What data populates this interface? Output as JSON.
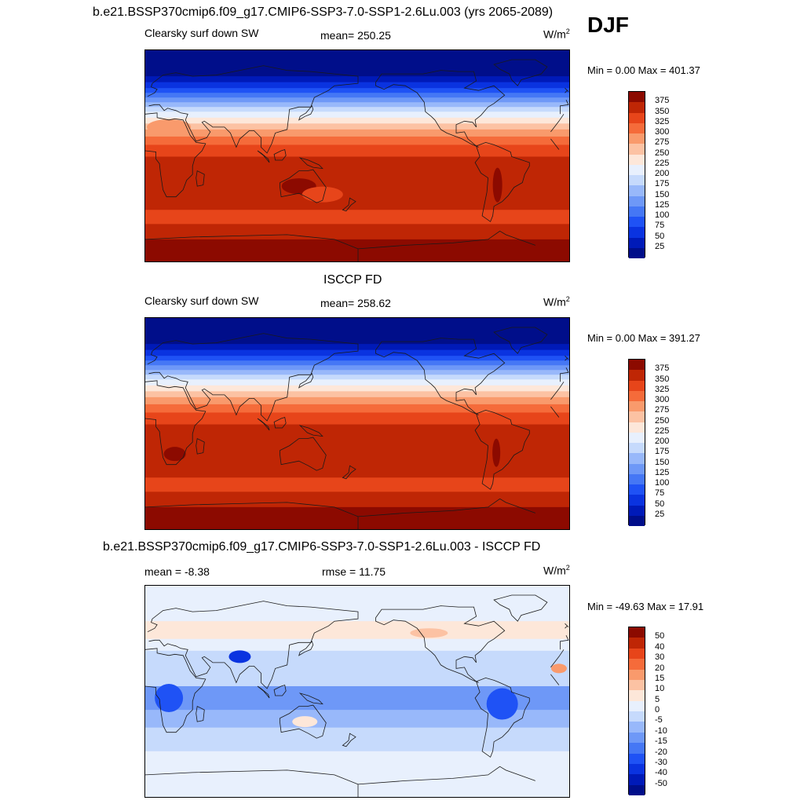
{
  "header": {
    "title": "b.e21.BSSP370cmip6.f09_g17.CMIP6-SSP3-7.0-SSP1-2.6Lu.003 (yrs 2065-2089)",
    "season": "DJF"
  },
  "panels": [
    {
      "id": "model",
      "title": "",
      "field_label": "Clearsky surf down SW",
      "stat_text": "mean= 250.25",
      "units_base": "W/m",
      "units_exp": "2",
      "minmax_text": "Min =   0.00 Max = 401.37",
      "colorbar_labels": [
        "375",
        "350",
        "325",
        "300",
        "275",
        "250",
        "225",
        "200",
        "175",
        "150",
        "125",
        "100",
        "75",
        "50",
        "25"
      ]
    },
    {
      "id": "obs",
      "title": "ISCCP FD",
      "field_label": "Clearsky surf down SW",
      "stat_text": "mean= 258.62",
      "units_base": "W/m",
      "units_exp": "2",
      "minmax_text": "Min =   0.00 Max = 391.27",
      "colorbar_labels": [
        "375",
        "350",
        "325",
        "300",
        "275",
        "250",
        "225",
        "200",
        "175",
        "150",
        "125",
        "100",
        "75",
        "50",
        "25"
      ]
    },
    {
      "id": "diff",
      "title": "b.e21.BSSP370cmip6.f09_g17.CMIP6-SSP3-7.0-SSP1-2.6Lu.003 - ISCCP FD",
      "field_label": "mean =  -8.38",
      "stat_text": "rmse =  11.75",
      "units_base": "W/m",
      "units_exp": "2",
      "minmax_text": "Min = -49.63 Max =  17.91",
      "colorbar_labels": [
        "50",
        "40",
        "30",
        "20",
        "15",
        "10",
        "5",
        "0",
        "-5",
        "-10",
        "-15",
        "-20",
        "-30",
        "-40",
        "-50"
      ]
    }
  ],
  "colors": {
    "abs_scale": [
      "#000e8a",
      "#001ab8",
      "#0a33e0",
      "#1f52f5",
      "#4577f5",
      "#6e98f7",
      "#98b8fa",
      "#c6dafc",
      "#e8f0fd",
      "#fde7d9",
      "#fcc2a3",
      "#f99a6c",
      "#f56b3a",
      "#e7451a",
      "#bf2605",
      "#8c0a00"
    ],
    "diff_scale": [
      "#000e8a",
      "#001ab8",
      "#0a33e0",
      "#1f52f5",
      "#4577f5",
      "#6e98f7",
      "#98b8fa",
      "#c6dafc",
      "#e8f0fd",
      "#fde7d9",
      "#fcc2a3",
      "#f99a6c",
      "#f56b3a",
      "#e7451a",
      "#bf2605",
      "#8c0a00"
    ]
  }
}
